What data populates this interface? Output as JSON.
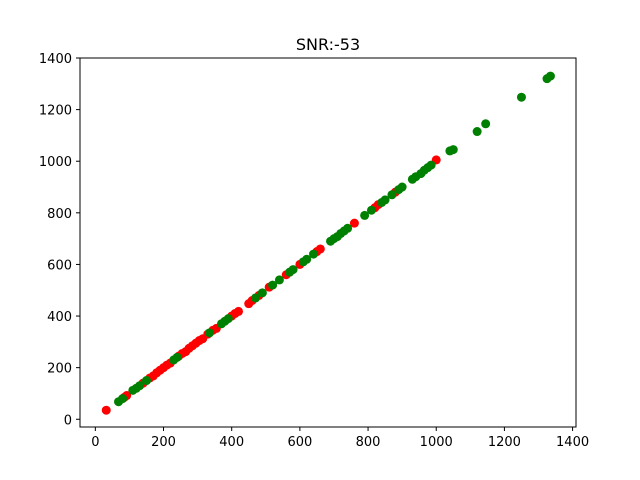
{
  "chart_data": {
    "type": "scatter",
    "title": "SNR:-53",
    "xlabel": "",
    "ylabel": "",
    "xlim": [
      -45,
      1410
    ],
    "ylim": [
      -30,
      1400
    ],
    "xticks": [
      0,
      200,
      400,
      600,
      800,
      1000,
      1200,
      1400
    ],
    "yticks": [
      0,
      200,
      400,
      600,
      800,
      1000,
      1200,
      1400
    ],
    "grid": false,
    "series": [
      {
        "color": "#ff0000",
        "points": [
          [
            32,
            35
          ],
          [
            85,
            85
          ],
          [
            92,
            92
          ],
          [
            140,
            140
          ],
          [
            160,
            160
          ],
          [
            170,
            168
          ],
          [
            180,
            180
          ],
          [
            190,
            190
          ],
          [
            200,
            200
          ],
          [
            210,
            210
          ],
          [
            220,
            218
          ],
          [
            245,
            245
          ],
          [
            255,
            255
          ],
          [
            265,
            262
          ],
          [
            275,
            275
          ],
          [
            285,
            285
          ],
          [
            295,
            295
          ],
          [
            305,
            305
          ],
          [
            315,
            312
          ],
          [
            330,
            330
          ],
          [
            345,
            345
          ],
          [
            355,
            352
          ],
          [
            400,
            400
          ],
          [
            410,
            410
          ],
          [
            420,
            418
          ],
          [
            450,
            448
          ],
          [
            460,
            460
          ],
          [
            480,
            480
          ],
          [
            510,
            512
          ],
          [
            560,
            560
          ],
          [
            600,
            600
          ],
          [
            650,
            650
          ],
          [
            660,
            660
          ],
          [
            760,
            760
          ],
          [
            820,
            820
          ],
          [
            830,
            832
          ],
          [
            880,
            880
          ],
          [
            1000,
            1005
          ]
        ]
      },
      {
        "color": "#008000",
        "points": [
          [
            68,
            68
          ],
          [
            80,
            80
          ],
          [
            110,
            112
          ],
          [
            120,
            120
          ],
          [
            130,
            130
          ],
          [
            150,
            150
          ],
          [
            230,
            230
          ],
          [
            240,
            240
          ],
          [
            335,
            335
          ],
          [
            370,
            370
          ],
          [
            380,
            380
          ],
          [
            390,
            390
          ],
          [
            470,
            470
          ],
          [
            490,
            490
          ],
          [
            520,
            520
          ],
          [
            540,
            540
          ],
          [
            570,
            570
          ],
          [
            580,
            580
          ],
          [
            610,
            610
          ],
          [
            620,
            620
          ],
          [
            640,
            640
          ],
          [
            690,
            690
          ],
          [
            700,
            700
          ],
          [
            710,
            708
          ],
          [
            720,
            720
          ],
          [
            730,
            730
          ],
          [
            740,
            740
          ],
          [
            790,
            790
          ],
          [
            810,
            810
          ],
          [
            840,
            840
          ],
          [
            850,
            850
          ],
          [
            870,
            870
          ],
          [
            890,
            890
          ],
          [
            900,
            900
          ],
          [
            930,
            930
          ],
          [
            940,
            940
          ],
          [
            955,
            952
          ],
          [
            965,
            965
          ],
          [
            975,
            975
          ],
          [
            985,
            985
          ],
          [
            1040,
            1040
          ],
          [
            1050,
            1045
          ],
          [
            1120,
            1115
          ],
          [
            1145,
            1145
          ],
          [
            1250,
            1248
          ],
          [
            1325,
            1320
          ],
          [
            1335,
            1330
          ]
        ]
      }
    ]
  }
}
